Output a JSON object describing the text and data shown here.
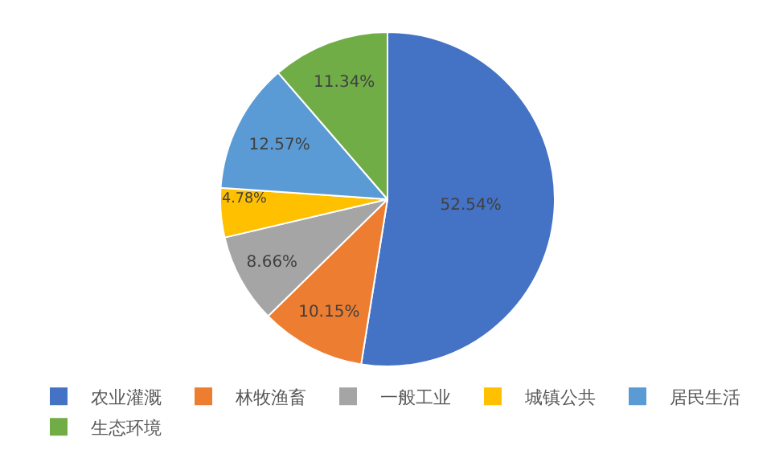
{
  "chart_data": {
    "type": "pie",
    "categories": [
      "农业灌溉",
      "林牧渔畜",
      "一般工业",
      "城镇公共",
      "居民生活",
      "生态环境"
    ],
    "values": [
      52.54,
      10.15,
      8.66,
      4.78,
      12.57,
      11.34
    ],
    "value_labels": [
      "52.54%",
      "10.15%",
      "8.66%",
      "4.78%",
      "12.57%",
      "11.34%"
    ],
    "colors": [
      "#4472c4",
      "#ed7d31",
      "#a5a5a5",
      "#ffc000",
      "#5b9bd5",
      "#70ad47"
    ],
    "legend": "bottom"
  }
}
